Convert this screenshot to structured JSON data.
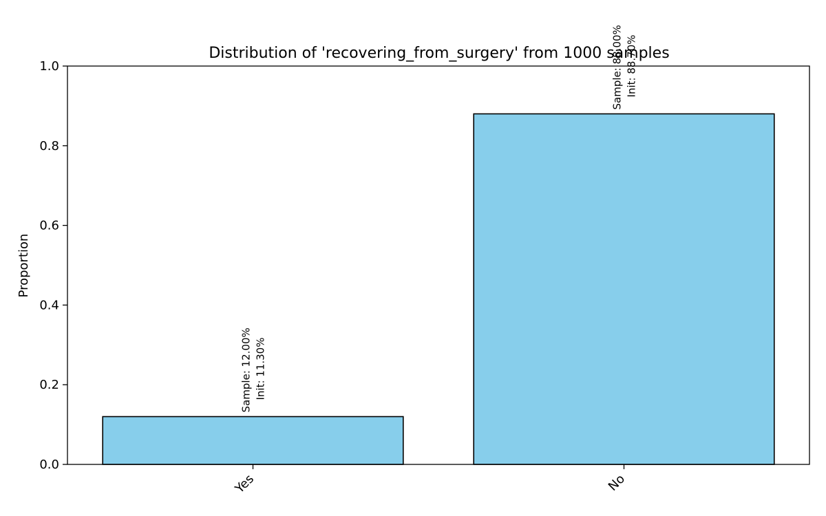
{
  "chart_data": {
    "type": "bar",
    "title": "Distribution of 'recovering_from_surgery' from 1000 samples",
    "xlabel": "",
    "ylabel": "Proportion",
    "ylim": [
      0,
      1.0
    ],
    "yticks": [
      "0.0",
      "0.2",
      "0.4",
      "0.6",
      "0.8",
      "1.0"
    ],
    "categories": [
      "Yes",
      "No"
    ],
    "values": [
      0.12,
      0.88
    ],
    "annotations": [
      {
        "sample": "Sample: 12.00%",
        "init": "Init: 11.30%"
      },
      {
        "sample": "Sample: 88.00%",
        "init": "Init: 88.70%"
      }
    ],
    "bar_color": "#87CEEB",
    "edge_color": "#000000",
    "grid": false,
    "legend": "none"
  }
}
